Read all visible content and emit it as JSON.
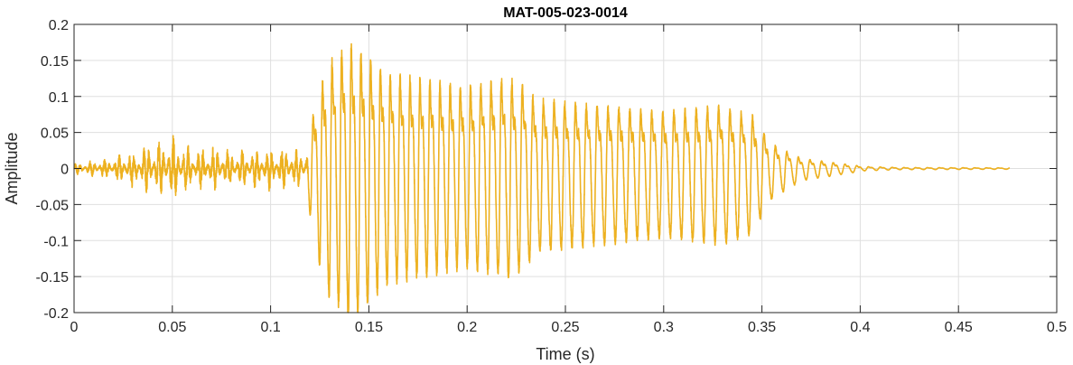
{
  "chart_data": {
    "type": "line",
    "title": "MAT-005-023-0014",
    "xlabel": "Time (s)",
    "ylabel": "Amplitude",
    "xlim": [
      0,
      0.5
    ],
    "ylim": [
      -0.2,
      0.2
    ],
    "xticks": [
      0,
      0.05,
      0.1,
      0.15,
      0.2,
      0.25,
      0.3,
      0.35,
      0.4,
      0.45,
      0.5
    ],
    "xtick_labels": [
      "0",
      "0.05",
      "0.1",
      "0.15",
      "0.2",
      "0.25",
      "0.3",
      "0.35",
      "0.4",
      "0.45",
      "0.5"
    ],
    "yticks": [
      -0.2,
      -0.15,
      -0.1,
      -0.05,
      0,
      0.05,
      0.1,
      0.15,
      0.2
    ],
    "ytick_labels": [
      "-0.2",
      "-0.15",
      "-0.1",
      "-0.05",
      "0",
      "0.05",
      "0.1",
      "0.15",
      "0.2"
    ],
    "grid": true,
    "line_color": "#EDB120",
    "series": [
      {
        "signal_end": 0.476,
        "envelope": [
          [
            0.0,
            0.008
          ],
          [
            0.01,
            0.012
          ],
          [
            0.02,
            0.018
          ],
          [
            0.03,
            0.03
          ],
          [
            0.05,
            0.05
          ],
          [
            0.06,
            0.03
          ],
          [
            0.07,
            0.035
          ],
          [
            0.08,
            0.03
          ],
          [
            0.09,
            0.03
          ],
          [
            0.1,
            0.035
          ],
          [
            0.11,
            0.03
          ],
          [
            0.118,
            0.03
          ],
          [
            0.124,
            0.12
          ],
          [
            0.13,
            0.17
          ],
          [
            0.14,
            0.2
          ],
          [
            0.16,
            0.15
          ],
          [
            0.2,
            0.13
          ],
          [
            0.22,
            0.145
          ],
          [
            0.23,
            0.13
          ],
          [
            0.235,
            0.11
          ],
          [
            0.3,
            0.09
          ],
          [
            0.33,
            0.1
          ],
          [
            0.345,
            0.085
          ],
          [
            0.355,
            0.04
          ],
          [
            0.37,
            0.016
          ],
          [
            0.39,
            0.008
          ],
          [
            0.402,
            0.003
          ],
          [
            0.42,
            0.0015
          ],
          [
            0.476,
            0.001
          ]
        ],
        "period_envelope": [
          [
            0.0,
            0.0025
          ],
          [
            0.118,
            0.0025
          ],
          [
            0.12,
            0.0048
          ],
          [
            0.2,
            0.0052
          ],
          [
            0.26,
            0.0055
          ],
          [
            0.35,
            0.0058
          ],
          [
            0.4,
            0.006
          ],
          [
            0.476,
            0.006
          ]
        ]
      }
    ]
  }
}
